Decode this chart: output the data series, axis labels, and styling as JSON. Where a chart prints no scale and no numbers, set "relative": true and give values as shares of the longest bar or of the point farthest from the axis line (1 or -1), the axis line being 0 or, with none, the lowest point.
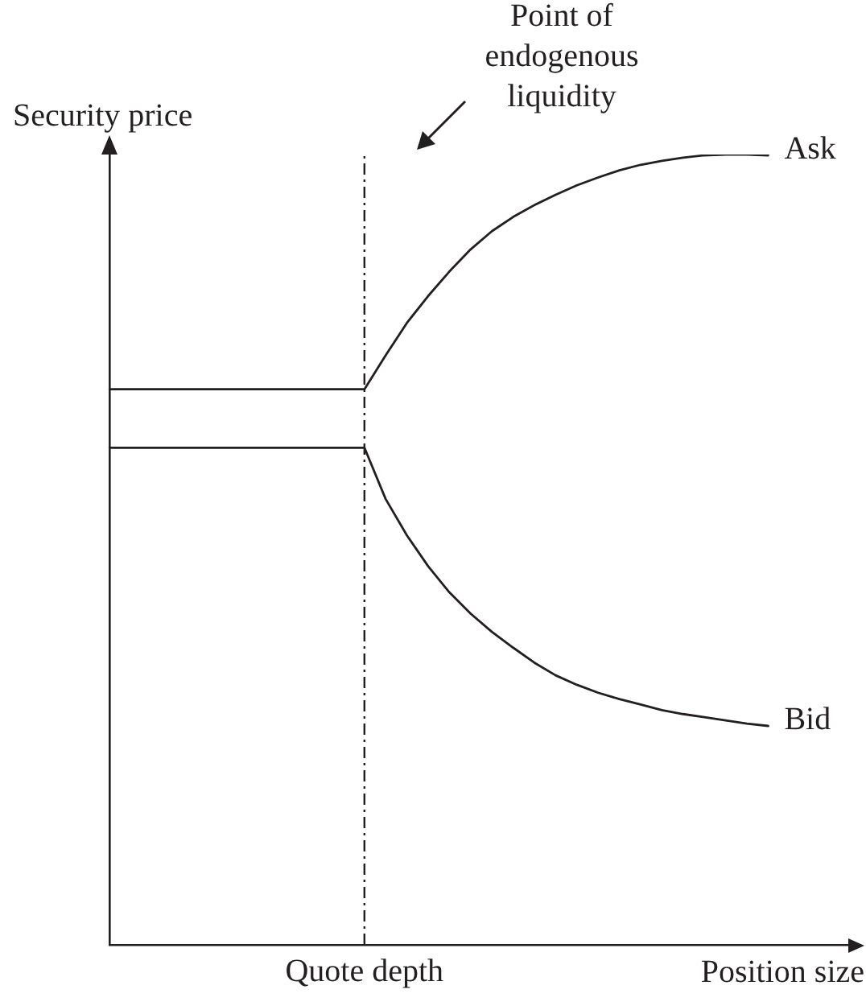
{
  "chart_data": {
    "type": "line",
    "relative": true,
    "ylabel": "Security price",
    "xlabel": "Position size",
    "annotations": [
      "Point of endogenous liquidity",
      "Quote depth"
    ],
    "marker": "none",
    "categories": [
      null,
      null,
      null,
      null,
      null,
      null,
      null,
      null,
      null,
      null,
      null,
      null,
      null,
      null,
      null,
      null,
      null,
      null,
      null,
      null,
      null,
      null,
      null,
      null,
      null,
      null,
      null,
      null,
      null,
      null,
      null,
      null,
      null,
      null,
      null,
      null
    ],
    "series": [
      {
        "name": "Ask",
        "color": "#231f20",
        "values": [
          0.703,
          0.703,
          0.703,
          0.703,
          0.703,
          0.703,
          0.703,
          0.703,
          0.703,
          0.703,
          0.703,
          0.703,
          0.703,
          0.746,
          0.787,
          0.821,
          0.852,
          0.88,
          0.903,
          0.921,
          0.936,
          0.949,
          0.961,
          0.971,
          0.98,
          0.987,
          0.992,
          0.996,
          0.999,
          1.0,
          1.0,
          0.999,
          null,
          null,
          null,
          null
        ]
      },
      {
        "name": "Bid",
        "color": "#231f20",
        "values": [
          0.629,
          0.629,
          0.629,
          0.629,
          0.629,
          0.629,
          0.629,
          0.629,
          0.629,
          0.629,
          0.629,
          0.629,
          0.629,
          0.564,
          0.518,
          0.479,
          0.446,
          0.419,
          0.396,
          0.376,
          0.357,
          0.341,
          0.329,
          0.319,
          0.311,
          0.304,
          0.297,
          0.292,
          0.288,
          0.284,
          0.28,
          0.277,
          null,
          null,
          null,
          null
        ]
      }
    ]
  }
}
